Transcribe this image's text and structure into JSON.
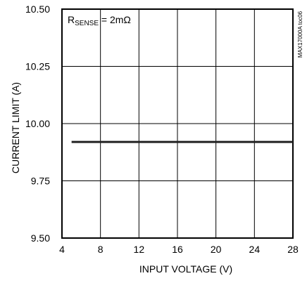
{
  "chart_data": {
    "type": "line",
    "title": "",
    "xlabel": "INPUT VOLTAGE (V)",
    "ylabel": "CURRENT LIMIT (A)",
    "xlim": [
      4,
      28
    ],
    "ylim": [
      9.5,
      10.5
    ],
    "x_ticks": [
      4,
      8,
      12,
      16,
      20,
      24,
      28
    ],
    "x_tick_labels": [
      "4",
      "8",
      "12",
      "16",
      "20",
      "24",
      "28"
    ],
    "y_ticks": [
      9.5,
      9.75,
      10.0,
      10.25,
      10.5
    ],
    "y_tick_labels": [
      "9.50",
      "9.75",
      "10.00",
      "10.25",
      "10.50"
    ],
    "grid": true,
    "annotation": {
      "prefix": "R",
      "subscript": "SENSE",
      "suffix": " = 2mΩ",
      "placement": "top-left"
    },
    "side_note": "MAX17000A toc06",
    "series": [
      {
        "x": [
          5,
          28
        ],
        "y": [
          9.92,
          9.92
        ],
        "color": "#222222"
      }
    ]
  }
}
